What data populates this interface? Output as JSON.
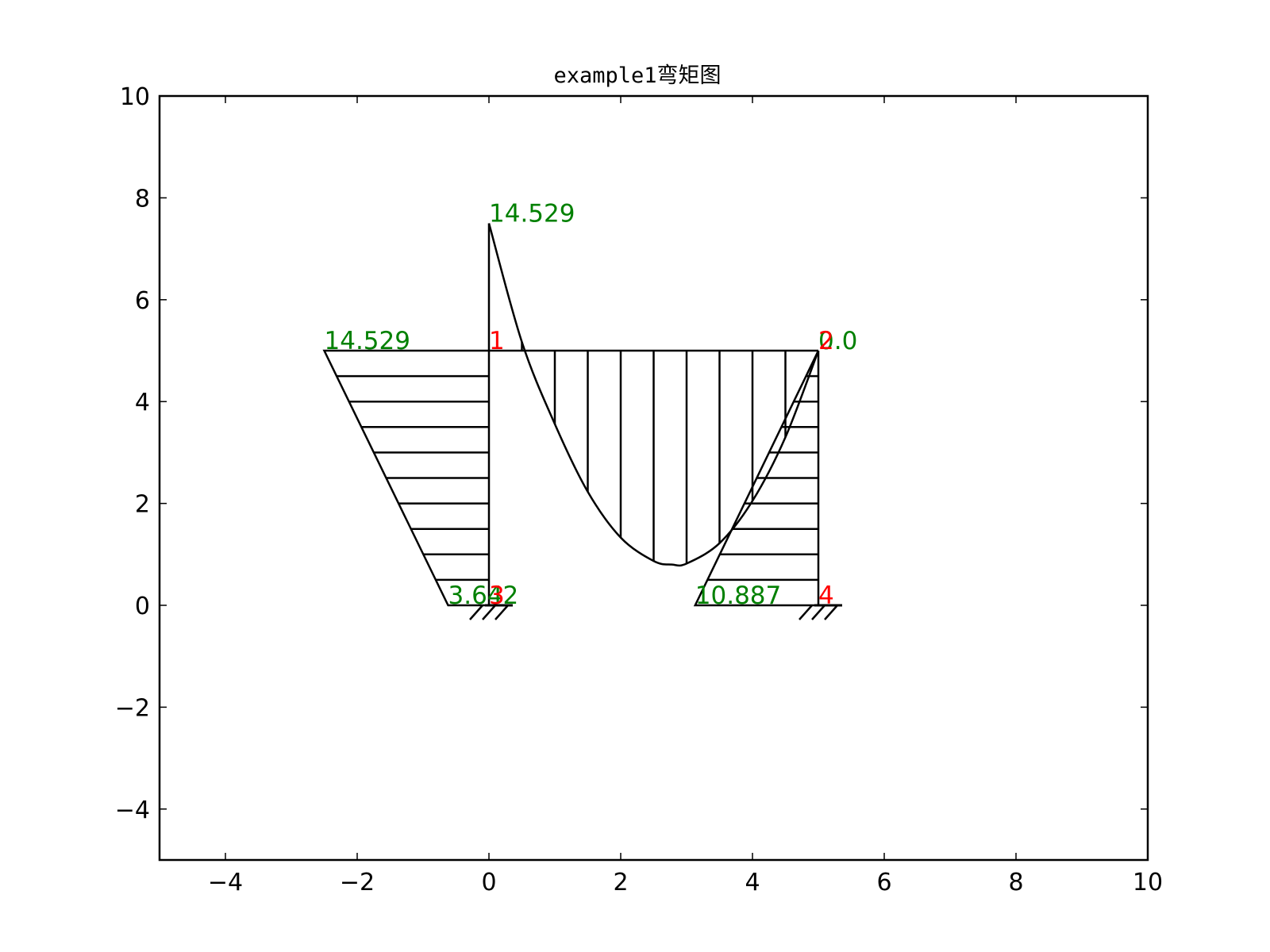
{
  "chart_data": {
    "type": "line",
    "title": "example1弯矩图",
    "xlabel": "",
    "ylabel": "",
    "xlim": [
      -5,
      10
    ],
    "ylim": [
      -5,
      10
    ],
    "xticks": [
      -4,
      -2,
      0,
      2,
      4,
      6,
      8,
      10
    ],
    "xtick_labels": [
      "−4",
      "−2",
      "0",
      "2",
      "4",
      "6",
      "8",
      "10"
    ],
    "yticks": [
      -4,
      -2,
      0,
      2,
      4,
      6,
      8,
      10
    ],
    "ytick_labels": [
      "−4",
      "−2",
      "0",
      "2",
      "4",
      "6",
      "8",
      "10"
    ],
    "grid": false,
    "legend": "none",
    "colors": {
      "frame": "#000000",
      "value_text": "#008000",
      "node_text": "#ff0000"
    },
    "members": [
      {
        "from": [
          0,
          0
        ],
        "to": [
          0,
          5
        ]
      },
      {
        "from": [
          0,
          5
        ],
        "to": [
          5,
          5
        ]
      },
      {
        "from": [
          5,
          5
        ],
        "to": [
          5,
          0
        ]
      }
    ],
    "supports": [
      {
        "type": "fixed",
        "at": [
          0,
          0
        ]
      },
      {
        "type": "fixed",
        "at": [
          5,
          0
        ]
      }
    ],
    "moment_diagrams": [
      {
        "member": "left-column",
        "shape": "linear",
        "points": [
          [
            0,
            0
          ],
          [
            -0.62,
            0
          ],
          [
            -2.5,
            5
          ],
          [
            0,
            5
          ]
        ],
        "hatch": "horizontal",
        "hatch_y": [
          0.5,
          1.0,
          1.5,
          2.0,
          2.5,
          3.0,
          3.5,
          4.0,
          4.5
        ]
      },
      {
        "member": "beam",
        "shape": "parabolic",
        "points": [
          [
            0,
            5
          ],
          [
            0,
            7.5
          ],
          [
            0.5,
            5.17
          ],
          [
            1,
            3.56
          ],
          [
            1.5,
            2.23
          ],
          [
            2,
            1.33
          ],
          [
            2.5,
            0.87
          ],
          [
            2.78,
            0.8
          ],
          [
            3,
            0.82
          ],
          [
            3.5,
            1.22
          ],
          [
            4,
            2.05
          ],
          [
            4.5,
            3.3
          ],
          [
            5,
            5
          ]
        ],
        "hatch": "vertical",
        "hatch_x": [
          0.5,
          1.0,
          1.5,
          2.0,
          2.5,
          3.0,
          3.5,
          4.0,
          4.5
        ]
      },
      {
        "member": "right-column",
        "shape": "linear",
        "points": [
          [
            5,
            0
          ],
          [
            3.13,
            0
          ],
          [
            5,
            5
          ]
        ],
        "hatch": "horizontal",
        "hatch_y": [
          0.5,
          1.0,
          1.5,
          2.0,
          2.5,
          3.0,
          3.5,
          4.0,
          4.5
        ]
      }
    ],
    "value_labels": [
      {
        "text": "14.529",
        "x": -2.5,
        "y": 5
      },
      {
        "text": "14.529",
        "x": 0,
        "y": 7.5
      },
      {
        "text": "3.642",
        "x": -0.62,
        "y": 0
      },
      {
        "text": "10.887",
        "x": 3.13,
        "y": 0
      },
      {
        "text": "0.0",
        "x": 5,
        "y": 5
      }
    ],
    "node_labels": [
      {
        "text": "1",
        "x": 0,
        "y": 5
      },
      {
        "text": "2",
        "x": 5,
        "y": 5
      },
      {
        "text": "3",
        "x": 0,
        "y": 0
      },
      {
        "text": "4",
        "x": 5,
        "y": 0
      }
    ]
  }
}
